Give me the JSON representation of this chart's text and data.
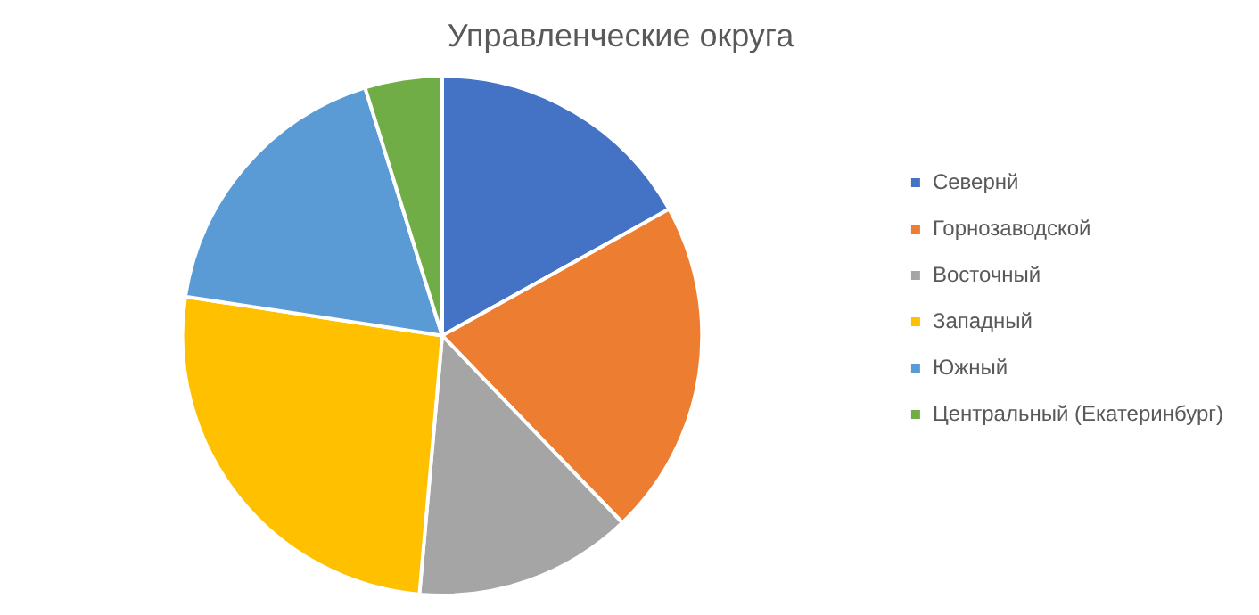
{
  "chart_data": {
    "type": "pie",
    "title": "Управленческие округа",
    "categories": [
      "Севернй",
      "Горнозаводской",
      "Восточный",
      "Западный",
      "Южный",
      "Центральный (Екатеринбург)"
    ],
    "values": [
      16.9,
      20.9,
      13.6,
      26.0,
      17.8,
      4.8
    ],
    "colors": [
      "#4472c4",
      "#ed7d31",
      "#a5a5a5",
      "#ffc000",
      "#5b9bd5",
      "#70ad47"
    ],
    "legend": "right"
  }
}
